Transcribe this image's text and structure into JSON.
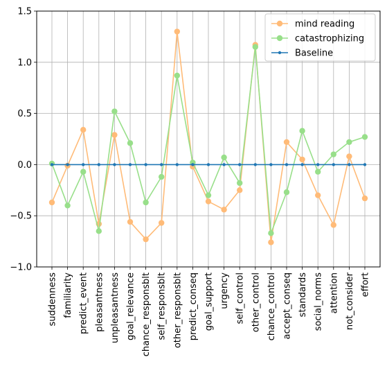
{
  "chart_data": {
    "type": "line",
    "title": "",
    "xlabel": "",
    "ylabel": "",
    "categories": [
      "suddenness",
      "familiarity",
      "predict_event",
      "pleasantness",
      "unpleasantness",
      "goal_relevance",
      "chance_responsblt",
      "self_responsblt",
      "other_responsblt",
      "predict_conseq",
      "goal_support",
      "urgency",
      "self_control",
      "other_control",
      "chance_control",
      "accept_conseq",
      "standards",
      "social_norms",
      "attention",
      "not_consider",
      "effort"
    ],
    "ylim": [
      -1.0,
      1.5
    ],
    "yticks": [
      -1.0,
      -0.5,
      0.0,
      0.5,
      1.0,
      1.5
    ],
    "ytick_labels": [
      "−1.0",
      "−0.5",
      "0.0",
      "0.5",
      "1.0",
      "1.5"
    ],
    "grid": true,
    "legend_position": "top-right",
    "series": [
      {
        "name": "mind reading",
        "color": "#ffbb78",
        "marker": "circle",
        "values": [
          -0.37,
          -0.01,
          0.34,
          -0.58,
          0.29,
          -0.56,
          -0.73,
          -0.57,
          1.3,
          -0.02,
          -0.36,
          -0.44,
          -0.25,
          1.17,
          -0.76,
          0.22,
          0.05,
          -0.3,
          -0.59,
          0.08,
          -0.33
        ]
      },
      {
        "name": "catastrophizing",
        "color": "#98df8a",
        "marker": "circle",
        "values": [
          0.01,
          -0.4,
          -0.07,
          -0.65,
          0.52,
          0.21,
          -0.37,
          -0.12,
          0.87,
          0.02,
          -0.3,
          0.07,
          -0.18,
          1.15,
          -0.67,
          -0.27,
          0.33,
          -0.07,
          0.1,
          0.22,
          0.27
        ]
      },
      {
        "name": "Baseline",
        "color": "#1f77b4",
        "marker": "point",
        "values": [
          0,
          0,
          0,
          0,
          0,
          0,
          0,
          0,
          0,
          0,
          0,
          0,
          0,
          0,
          0,
          0,
          0,
          0,
          0,
          0,
          0
        ]
      }
    ]
  }
}
